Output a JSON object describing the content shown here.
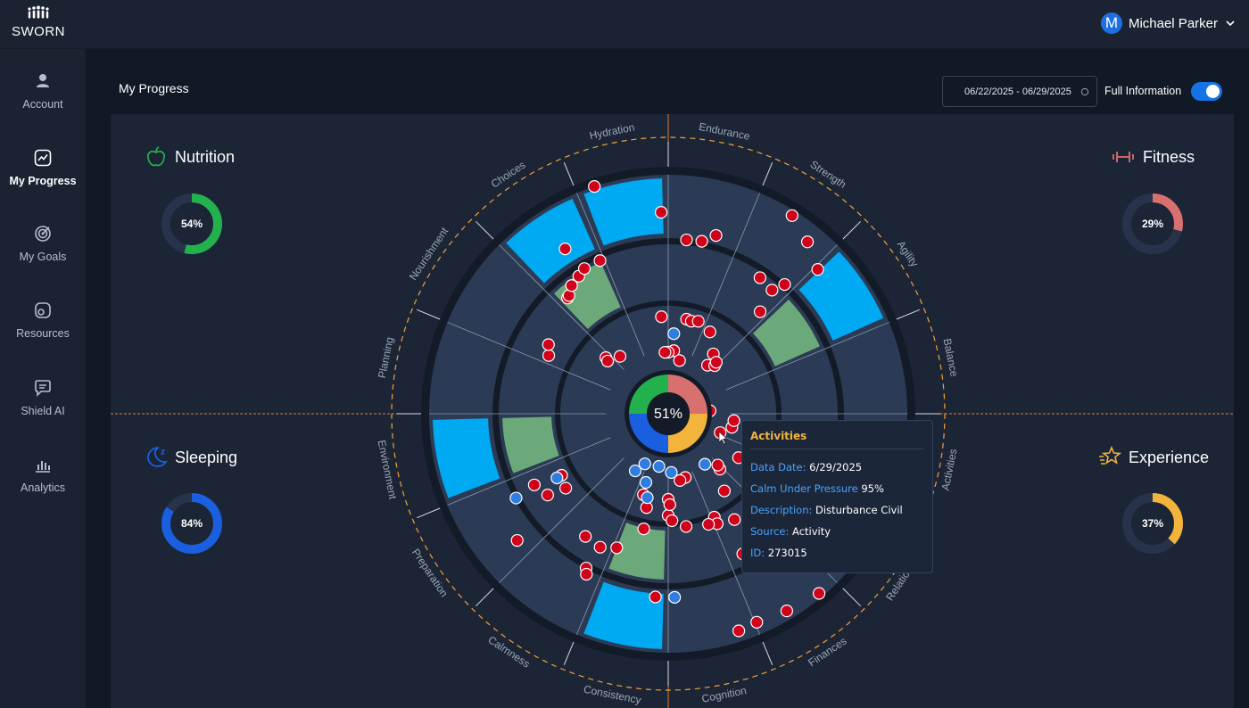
{
  "app": {
    "logo_text": "SWORN",
    "user_initial": "M",
    "user_name": "Michael Parker"
  },
  "sidebar": {
    "items": [
      {
        "label": "Account",
        "icon": "user-icon",
        "active": false
      },
      {
        "label": "My Progress",
        "icon": "progress-chart-icon",
        "active": true
      },
      {
        "label": "My Goals",
        "icon": "target-icon",
        "active": false
      },
      {
        "label": "Resources",
        "icon": "resources-icon",
        "active": false
      },
      {
        "label": "Shield AI",
        "icon": "chat-icon",
        "active": false
      },
      {
        "label": "Analytics",
        "icon": "bar-chart-icon",
        "active": false
      }
    ]
  },
  "page": {
    "title": "My Progress",
    "date_range": "06/22/2025 - 06/29/2025",
    "full_info_label": "Full Information",
    "full_info_on": true
  },
  "categories": {
    "nutrition": {
      "label": "Nutrition",
      "percent": 54,
      "percent_label": "54%",
      "color": "#22b14c",
      "icon": "apple-icon"
    },
    "fitness": {
      "label": "Fitness",
      "percent": 29,
      "percent_label": "29%",
      "color": "#d97070",
      "icon": "dumbbell-icon"
    },
    "sleeping": {
      "label": "Sleeping",
      "percent": 84,
      "percent_label": "84%",
      "color": "#1a5fe0",
      "icon": "moon-icon"
    },
    "experience": {
      "label": "Experience",
      "percent": 37,
      "percent_label": "37%",
      "color": "#f2b43a",
      "icon": "stars-icon"
    }
  },
  "radial": {
    "center_label": "51%",
    "segments": [
      "Hydration",
      "Endurance",
      "Strength",
      "Agility",
      "Balance",
      "Activities",
      "Relationships",
      "Finances",
      "Cognition",
      "Consistency",
      "Calmness",
      "Preparation",
      "Environment",
      "Planning",
      "Nourishment",
      "Choices"
    ]
  },
  "tooltip": {
    "title": "Activities",
    "rows": [
      {
        "key": "Data Date:",
        "value": "6/29/2025"
      },
      {
        "key": "Calm Under Pressure",
        "value": "95%"
      },
      {
        "key": "Description:",
        "value": "Disturbance Civil"
      },
      {
        "key": "Source:",
        "value": "Activity"
      },
      {
        "key": "ID:",
        "value": "273015"
      }
    ]
  },
  "colors": {
    "accent": "#1673e6",
    "point_red": "#d0021b",
    "point_blue": "#2f7de1",
    "cell_cyan": "#00aaf2",
    "cell_green": "#6ba87a",
    "axis_orange": "#e07a30"
  }
}
